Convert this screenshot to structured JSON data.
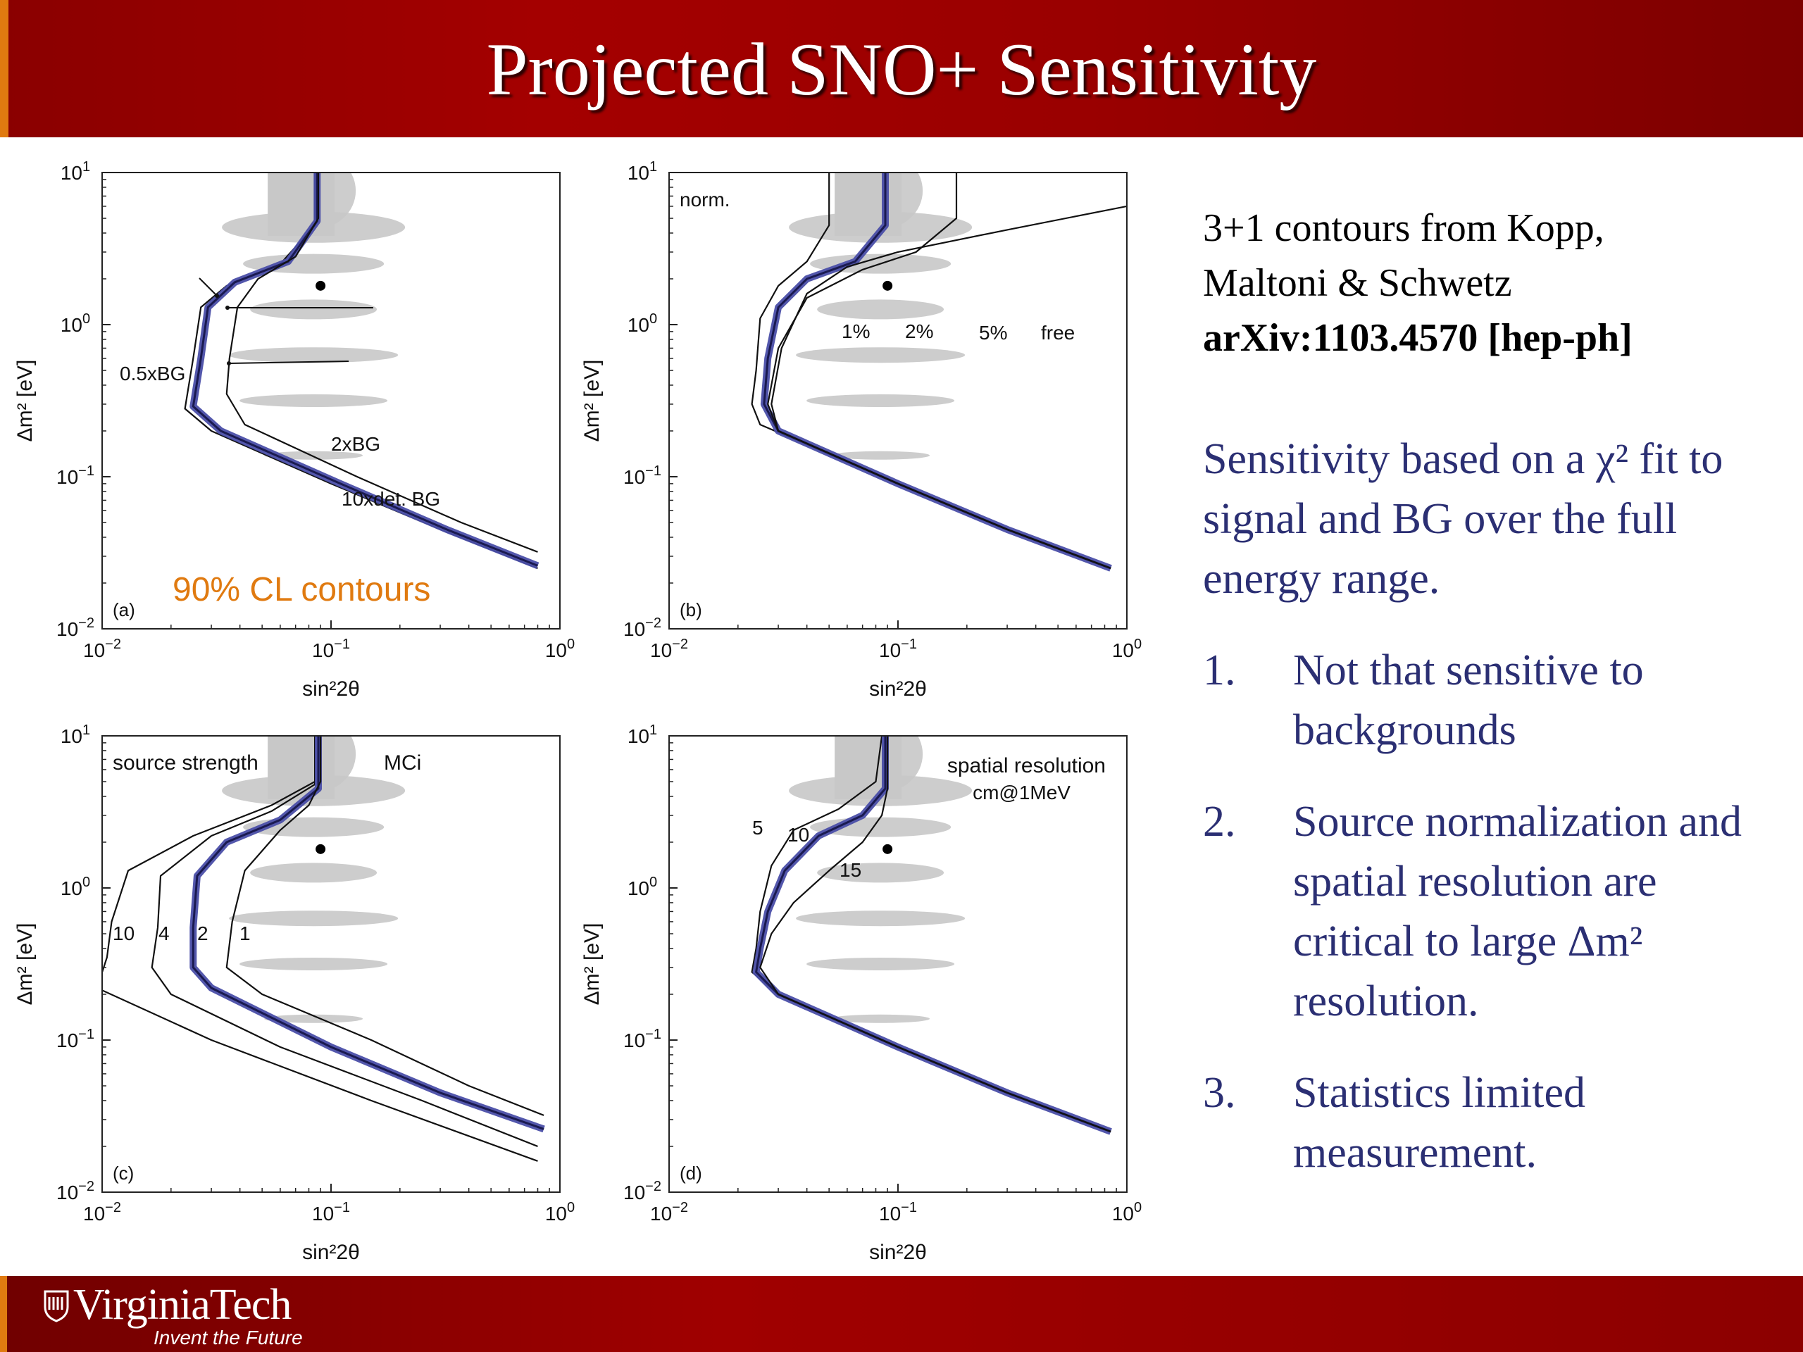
{
  "slide": {
    "title": "Projected SNO+ Sensitivity",
    "logo_text": "VirginiaTech",
    "tagline": "Invent the Future"
  },
  "sidebar": {
    "reference_line1": "3+1 contours from Kopp,",
    "reference_line2": "Maltoni & Schwetz",
    "reference_arxiv": "arXiv:1103.4570 [hep-ph]",
    "intro_text": "Sensitivity based on a χ² fit to signal and BG over the full energy range.",
    "items": [
      {
        "num": "1.",
        "text": "Not that sensitive to backgrounds"
      },
      {
        "num": "2.",
        "text": "Source normalization and spatial resolution are critical to large Δm² resolution."
      },
      {
        "num": "3.",
        "text": "Statistics limited measurement."
      }
    ]
  },
  "colors": {
    "header_red": "#9a0000",
    "accent_orange": "#e07a10",
    "text_blue": "#2b2f73",
    "contour_blue": "#4a4ea8",
    "allowed_gray": "#c8c8c8"
  },
  "chart_data": [
    {
      "type": "line",
      "panel": "(a)",
      "xlabel": "sin²2θ",
      "ylabel": "Δm² [eV]",
      "xscale": "log",
      "yscale": "log",
      "xlim": [
        0.01,
        1
      ],
      "ylim": [
        0.01,
        10
      ],
      "xticks": [
        "10⁻²",
        "10⁻¹",
        "10⁰"
      ],
      "yticks": [
        "10⁻²",
        "10⁻¹",
        "10⁰",
        "10¹"
      ],
      "annotation": "90% CL contours",
      "best_fit_point": {
        "x": 0.09,
        "y": 1.8
      },
      "series": [
        {
          "name": "0.5xBG",
          "points": [
            [
              0.085,
              10
            ],
            [
              0.085,
              4.5
            ],
            [
              0.06,
              2.5
            ],
            [
              0.035,
              1.8
            ],
            [
              0.027,
              1.3
            ],
            [
              0.025,
              0.6
            ],
            [
              0.023,
              0.28
            ],
            [
              0.03,
              0.2
            ],
            [
              0.1,
              0.09
            ],
            [
              0.3,
              0.045
            ],
            [
              0.8,
              0.025
            ]
          ]
        },
        {
          "name": "2xBG",
          "points": [
            [
              0.087,
              10
            ],
            [
              0.087,
              4.8
            ],
            [
              0.065,
              2.6
            ],
            [
              0.038,
              1.9
            ],
            [
              0.029,
              1.3
            ],
            [
              0.027,
              0.6
            ],
            [
              0.025,
              0.29
            ],
            [
              0.033,
              0.2
            ],
            [
              0.11,
              0.09
            ],
            [
              0.32,
              0.045
            ],
            [
              0.8,
              0.026
            ]
          ]
        },
        {
          "name": "10xdet. BG",
          "points": [
            [
              0.088,
              10
            ],
            [
              0.088,
              5
            ],
            [
              0.07,
              2.8
            ],
            [
              0.048,
              2
            ],
            [
              0.039,
              1.3
            ],
            [
              0.036,
              0.6
            ],
            [
              0.035,
              0.35
            ],
            [
              0.042,
              0.22
            ],
            [
              0.13,
              0.1
            ],
            [
              0.37,
              0.05
            ],
            [
              0.8,
              0.032
            ]
          ]
        }
      ]
    },
    {
      "type": "line",
      "panel": "(b)",
      "xlabel": "sin²2θ",
      "ylabel": "Δm² [eV]",
      "xscale": "log",
      "yscale": "log",
      "xlim": [
        0.01,
        1
      ],
      "ylim": [
        0.01,
        10
      ],
      "xticks": [
        "10⁻²",
        "10⁻¹",
        "10⁰"
      ],
      "yticks": [
        "10⁻²",
        "10⁻¹",
        "10⁰",
        "10¹"
      ],
      "legend_title": "norm.",
      "best_fit_point": {
        "x": 0.09,
        "y": 1.8
      },
      "series": [
        {
          "name": "1%",
          "points": [
            [
              0.05,
              10
            ],
            [
              0.05,
              4.5
            ],
            [
              0.04,
              2.6
            ],
            [
              0.03,
              1.8
            ],
            [
              0.025,
              1.1
            ],
            [
              0.024,
              0.5
            ],
            [
              0.023,
              0.3
            ],
            [
              0.025,
              0.22
            ],
            [
              0.1,
              0.09
            ],
            [
              0.3,
              0.045
            ],
            [
              0.85,
              0.025
            ]
          ]
        },
        {
          "name": "2%",
          "points": [
            [
              0.088,
              10
            ],
            [
              0.088,
              4.5
            ],
            [
              0.065,
              2.6
            ],
            [
              0.04,
              2
            ],
            [
              0.03,
              1.3
            ],
            [
              0.027,
              0.6
            ],
            [
              0.026,
              0.3
            ],
            [
              0.03,
              0.2
            ],
            [
              0.1,
              0.09
            ],
            [
              0.3,
              0.045
            ],
            [
              0.85,
              0.025
            ]
          ]
        },
        {
          "name": "5%",
          "points": [
            [
              0.18,
              10
            ],
            [
              0.18,
              5
            ],
            [
              0.12,
              3
            ],
            [
              0.07,
              2.3
            ],
            [
              0.04,
              1.5
            ],
            [
              0.03,
              0.7
            ],
            [
              0.027,
              0.3
            ],
            [
              0.03,
              0.2
            ],
            [
              0.1,
              0.09
            ],
            [
              0.3,
              0.045
            ],
            [
              0.85,
              0.025
            ]
          ]
        },
        {
          "name": "free",
          "points": [
            [
              1.0,
              6
            ],
            [
              0.3,
              4.2
            ],
            [
              0.1,
              3
            ],
            [
              0.06,
              2.4
            ],
            [
              0.04,
              1.6
            ],
            [
              0.031,
              0.7
            ],
            [
              0.028,
              0.3
            ],
            [
              0.03,
              0.2
            ],
            [
              0.1,
              0.09
            ],
            [
              0.3,
              0.045
            ],
            [
              0.85,
              0.025
            ]
          ]
        }
      ]
    },
    {
      "type": "line",
      "panel": "(c)",
      "xlabel": "sin²2θ",
      "ylabel": "Δm² [eV]",
      "xscale": "log",
      "yscale": "log",
      "xlim": [
        0.01,
        1
      ],
      "ylim": [
        0.01,
        10
      ],
      "xticks": [
        "10⁻²",
        "10⁻¹",
        "10⁰"
      ],
      "yticks": [
        "10⁻²",
        "10⁻¹",
        "10⁰",
        "10¹"
      ],
      "legend_title": "source strength",
      "unit": "MCi",
      "best_fit_point": {
        "x": 0.09,
        "y": 1.8
      },
      "series": [
        {
          "name": "10",
          "points": [
            [
              0.085,
              10
            ],
            [
              0.085,
              5
            ],
            [
              0.055,
              3.5
            ],
            [
              0.025,
              2.2
            ],
            [
              0.013,
              1.3
            ],
            [
              0.011,
              0.6
            ],
            [
              0.0105,
              0.35
            ],
            [
              0.0095,
              0.22
            ],
            [
              0.03,
              0.1
            ],
            [
              0.15,
              0.04
            ],
            [
              0.8,
              0.016
            ]
          ]
        },
        {
          "name": "4",
          "points": [
            [
              0.085,
              10
            ],
            [
              0.085,
              4.8
            ],
            [
              0.055,
              3.2
            ],
            [
              0.03,
              2.2
            ],
            [
              0.018,
              1.2
            ],
            [
              0.0175,
              0.55
            ],
            [
              0.0165,
              0.3
            ],
            [
              0.02,
              0.2
            ],
            [
              0.06,
              0.09
            ],
            [
              0.25,
              0.04
            ],
            [
              0.8,
              0.02
            ]
          ]
        },
        {
          "name": "2",
          "points": [
            [
              0.088,
              10
            ],
            [
              0.088,
              4.5
            ],
            [
              0.06,
              2.8
            ],
            [
              0.035,
              2
            ],
            [
              0.026,
              1.2
            ],
            [
              0.025,
              0.55
            ],
            [
              0.025,
              0.3
            ],
            [
              0.03,
              0.22
            ],
            [
              0.1,
              0.09
            ],
            [
              0.3,
              0.045
            ],
            [
              0.85,
              0.026
            ]
          ]
        },
        {
          "name": "1",
          "points": [
            [
              0.09,
              10
            ],
            [
              0.09,
              5
            ],
            [
              0.08,
              3.5
            ],
            [
              0.06,
              2.4
            ],
            [
              0.042,
              1.3
            ],
            [
              0.037,
              0.6
            ],
            [
              0.035,
              0.3
            ],
            [
              0.05,
              0.2
            ],
            [
              0.15,
              0.1
            ],
            [
              0.4,
              0.05
            ],
            [
              0.85,
              0.032
            ]
          ]
        }
      ]
    },
    {
      "type": "line",
      "panel": "(d)",
      "xlabel": "sin²2θ",
      "ylabel": "Δm² [eV]",
      "xscale": "log",
      "yscale": "log",
      "xlim": [
        0.01,
        1
      ],
      "ylim": [
        0.01,
        10
      ],
      "xticks": [
        "10⁻²",
        "10⁻¹",
        "10⁰"
      ],
      "yticks": [
        "10⁻²",
        "10⁻¹",
        "10⁰",
        "10¹"
      ],
      "legend_title": "spatial resolution",
      "unit": "cm@1MeV",
      "best_fit_point": {
        "x": 0.09,
        "y": 1.8
      },
      "series": [
        {
          "name": "5",
          "points": [
            [
              0.085,
              10
            ],
            [
              0.08,
              5
            ],
            [
              0.055,
              3.3
            ],
            [
              0.035,
              2.4
            ],
            [
              0.028,
              1.4
            ],
            [
              0.025,
              0.7
            ],
            [
              0.024,
              0.4
            ],
            [
              0.023,
              0.28
            ],
            [
              0.03,
              0.2
            ],
            [
              0.1,
              0.09
            ],
            [
              0.3,
              0.045
            ],
            [
              0.85,
              0.025
            ]
          ]
        },
        {
          "name": "10",
          "points": [
            [
              0.088,
              10
            ],
            [
              0.088,
              4.5
            ],
            [
              0.07,
              3
            ],
            [
              0.045,
              2.2
            ],
            [
              0.032,
              1.3
            ],
            [
              0.027,
              0.7
            ],
            [
              0.025,
              0.4
            ],
            [
              0.024,
              0.28
            ],
            [
              0.03,
              0.2
            ],
            [
              0.1,
              0.09
            ],
            [
              0.3,
              0.045
            ],
            [
              0.85,
              0.025
            ]
          ]
        },
        {
          "name": "15",
          "points": [
            [
              0.09,
              10
            ],
            [
              0.09,
              4.5
            ],
            [
              0.085,
              3
            ],
            [
              0.07,
              2
            ],
            [
              0.05,
              1.3
            ],
            [
              0.035,
              0.8
            ],
            [
              0.028,
              0.5
            ],
            [
              0.025,
              0.3
            ],
            [
              0.03,
              0.2
            ],
            [
              0.1,
              0.09
            ],
            [
              0.3,
              0.045
            ],
            [
              0.85,
              0.025
            ]
          ]
        }
      ]
    }
  ]
}
